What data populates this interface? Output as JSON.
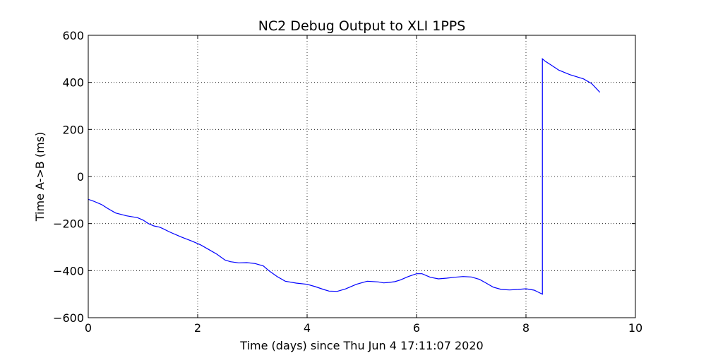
{
  "chart_data": {
    "type": "line",
    "title": "NC2 Debug Output to XLI 1PPS",
    "xlabel": "Time (days) since Thu Jun  4 17:11:07 2020",
    "ylabel": "Time A->B (ms)",
    "xlim": [
      0,
      10
    ],
    "ylim": [
      -600,
      600
    ],
    "xticks": [
      0,
      2,
      4,
      6,
      8,
      10
    ],
    "yticks": [
      -600,
      -400,
      -200,
      0,
      200,
      400,
      600
    ],
    "xtick_labels": [
      "0",
      "2",
      "4",
      "6",
      "8",
      "10"
    ],
    "ytick_labels": [
      "−600",
      "−400",
      "−200",
      "0",
      "200",
      "400",
      "600"
    ],
    "grid": true,
    "series": [
      {
        "color": "#0000ff",
        "x": [
          0,
          0.1,
          0.2,
          0.25,
          0.35,
          0.5,
          0.7,
          0.9,
          1.0,
          1.1,
          1.2,
          1.3,
          1.35,
          1.5,
          1.7,
          1.9,
          2.05,
          2.2,
          2.35,
          2.5,
          2.6,
          2.75,
          2.9,
          3.05,
          3.2,
          3.3,
          3.45,
          3.6,
          3.8,
          4.0,
          4.15,
          4.3,
          4.4,
          4.55,
          4.7,
          4.9,
          5.1,
          5.3,
          5.4,
          5.5,
          5.6,
          5.7,
          5.85,
          6.0,
          6.1,
          6.25,
          6.4,
          6.55,
          6.7,
          6.85,
          7.0,
          7.15,
          7.25,
          7.4,
          7.55,
          7.7,
          7.85,
          8.0,
          8.15,
          8.3,
          8.3,
          8.35,
          8.45,
          8.6,
          8.8,
          9.05,
          9.2,
          9.35
        ],
        "y": [
          -97,
          -105,
          -115,
          -120,
          -135,
          -155,
          -167,
          -175,
          -185,
          -200,
          -210,
          -215,
          -220,
          -237,
          -257,
          -275,
          -290,
          -310,
          -330,
          -355,
          -362,
          -367,
          -366,
          -370,
          -380,
          -400,
          -425,
          -445,
          -453,
          -458,
          -468,
          -480,
          -487,
          -488,
          -478,
          -458,
          -445,
          -448,
          -452,
          -450,
          -447,
          -440,
          -425,
          -413,
          -413,
          -428,
          -435,
          -432,
          -428,
          -425,
          -427,
          -437,
          -450,
          -470,
          -480,
          -482,
          -480,
          -477,
          -483,
          -500,
          500,
          490,
          475,
          452,
          433,
          415,
          395,
          358
        ]
      }
    ]
  }
}
